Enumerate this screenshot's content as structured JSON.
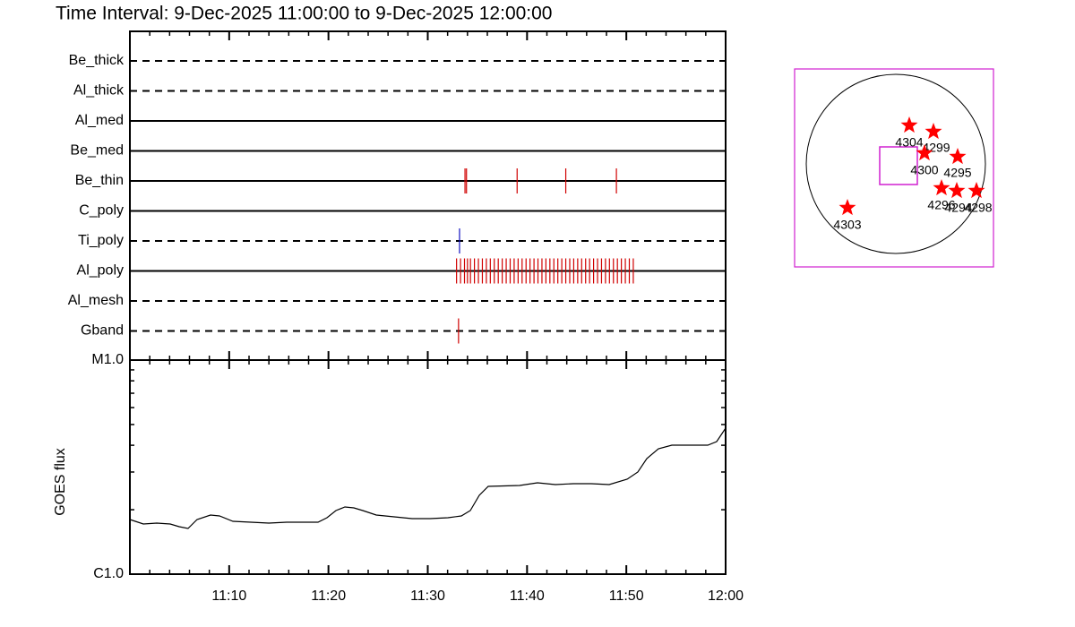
{
  "chart_data": {
    "type": "timeline",
    "title": "Time Interval:  9-Dec-2025 11:00:00 to  9-Dec-2025 12:00:00",
    "xlim": [
      0,
      60
    ],
    "xticks": [
      {
        "value": 10,
        "label": "11:10"
      },
      {
        "value": 20,
        "label": "11:20"
      },
      {
        "value": 30,
        "label": "11:30"
      },
      {
        "value": 40,
        "label": "11:40"
      },
      {
        "value": 50,
        "label": "11:50"
      },
      {
        "value": 60,
        "label": "12:00"
      }
    ],
    "filters": [
      {
        "name": "Be_thick",
        "line": "dashed",
        "color": "#d00000",
        "events": []
      },
      {
        "name": "Al_thick",
        "line": "dashed",
        "color": "#d00000",
        "events": []
      },
      {
        "name": "Al_med",
        "line": "solid",
        "color": "#d00000",
        "events": []
      },
      {
        "name": "Be_med",
        "line": "solid",
        "color": "#d00000",
        "events": []
      },
      {
        "name": "Be_thin",
        "line": "solid",
        "color": "#d00000",
        "events": [
          33.75,
          33.9,
          39.0,
          43.9,
          49.0
        ]
      },
      {
        "name": "C_poly",
        "line": "solid",
        "color": "#d00000",
        "events": []
      },
      {
        "name": "Ti_poly",
        "line": "dashed",
        "color": "#1010c0",
        "events": [
          33.2
        ]
      },
      {
        "name": "Al_poly",
        "line": "solid",
        "color": "#d00000",
        "events": [
          32.9,
          33.3,
          33.7,
          34.0,
          34.3,
          34.7,
          35.1,
          35.5,
          35.9,
          36.3,
          36.7,
          37.1,
          37.5,
          37.9,
          38.3,
          38.7,
          39.1,
          39.5,
          39.9,
          40.3,
          40.7,
          41.1,
          41.5,
          41.9,
          42.3,
          42.7,
          43.1,
          43.5,
          43.9,
          44.3,
          44.7,
          45.1,
          45.5,
          45.9,
          46.3,
          46.7,
          47.1,
          47.5,
          47.9,
          48.3,
          48.7,
          49.1,
          49.5,
          49.9,
          50.3,
          50.7
        ]
      },
      {
        "name": "Al_mesh",
        "line": "dashed",
        "color": "#d00000",
        "events": []
      },
      {
        "name": "Gband",
        "line": "dashed",
        "color": "#d00000",
        "events": [
          33.1
        ]
      }
    ],
    "goes": {
      "type": "line",
      "ylabel": "GOES flux",
      "log": true,
      "ylim": [
        1e-06,
        1e-05
      ],
      "yticks": [
        {
          "value": 1e-06,
          "label": "C1.0"
        },
        {
          "value": 1e-05,
          "label": "M1.0"
        }
      ],
      "color": "#000000",
      "x": [
        0,
        1.35,
        2.71,
        4.06,
        4.96,
        5.86,
        6.77,
        8.12,
        9.02,
        10.38,
        12.18,
        13.99,
        15.79,
        17.59,
        18.95,
        19.85,
        20.75,
        21.65,
        22.56,
        23.46,
        24.81,
        26.62,
        28.42,
        30.23,
        32.03,
        33.38,
        34.29,
        35.19,
        36.09,
        39.25,
        41.05,
        42.86,
        44.66,
        46.47,
        48.27,
        50.08,
        51.16,
        52.06,
        53.23,
        54.59,
        58.2,
        59.1,
        60
      ],
      "values": [
        1.8e-06,
        1.716e-06,
        1.732e-06,
        1.716e-06,
        1.666e-06,
        1.635e-06,
        1.8e-06,
        1.889e-06,
        1.871e-06,
        1.765e-06,
        1.748e-06,
        1.732e-06,
        1.748e-06,
        1.748e-06,
        1.748e-06,
        1.835e-06,
        1.982e-06,
        2.06e-06,
        2.04e-06,
        1.982e-06,
        1.889e-06,
        1.853e-06,
        1.817e-06,
        1.817e-06,
        1.835e-06,
        1.871e-06,
        1.982e-06,
        2.334e-06,
        2.57e-06,
        2.595e-06,
        2.672e-06,
        2.62e-06,
        2.646e-06,
        2.646e-06,
        2.62e-06,
        2.777e-06,
        2.999e-06,
        3.465e-06,
        3.853e-06,
        4.005e-06,
        4.005e-06,
        4.161e-06,
        4.808e-06
      ]
    },
    "map": {
      "regions": [
        "4304",
        "4299",
        "4300",
        "4295",
        "4296",
        "4294",
        "4298",
        "4303"
      ],
      "color": "#ff0000"
    }
  }
}
